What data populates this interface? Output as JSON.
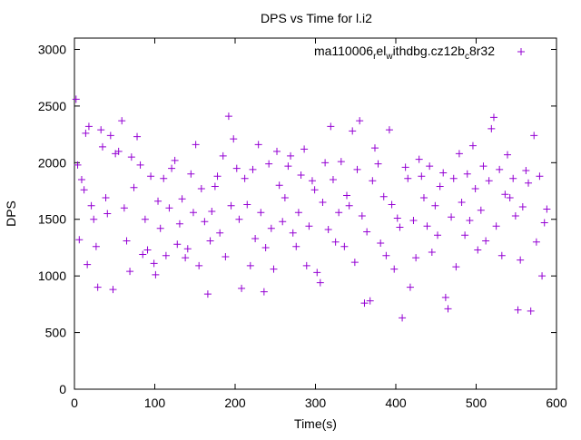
{
  "chart_data": {
    "type": "scatter",
    "title": "DPS vs Time for l.i2",
    "xlabel": "Time(s)",
    "ylabel": "DPS",
    "xlim": [
      0,
      600
    ],
    "ylim": [
      0,
      3100
    ],
    "xticks": [
      0,
      100,
      200,
      300,
      400,
      500,
      600
    ],
    "yticks": [
      0,
      500,
      1000,
      1500,
      2000,
      2500,
      3000
    ],
    "grid": false,
    "legend_position": "top-right",
    "series": [
      {
        "name": "ma110006_rel_withdbg.cz12b_c8r32",
        "name_parts": {
          "base1": "ma110006",
          "sub1": "r",
          "base2": "el",
          "sub2": "w",
          "base3": "ithdbg.cz12b",
          "sub3": "c",
          "base4": "8r32"
        },
        "color": "#9400d3",
        "marker": "plus",
        "points": [
          [
            2,
            2560
          ],
          [
            4,
            1980
          ],
          [
            6,
            1320
          ],
          [
            9,
            1850
          ],
          [
            12,
            1760
          ],
          [
            14,
            2260
          ],
          [
            16,
            1100
          ],
          [
            18,
            2320
          ],
          [
            21,
            1620
          ],
          [
            24,
            1500
          ],
          [
            27,
            1260
          ],
          [
            29,
            900
          ],
          [
            33,
            2290
          ],
          [
            35,
            2140
          ],
          [
            39,
            1690
          ],
          [
            41,
            1550
          ],
          [
            45,
            2240
          ],
          [
            48,
            880
          ],
          [
            51,
            2080
          ],
          [
            55,
            2100
          ],
          [
            59,
            2370
          ],
          [
            62,
            1600
          ],
          [
            65,
            1310
          ],
          [
            69,
            1040
          ],
          [
            71,
            2050
          ],
          [
            74,
            1780
          ],
          [
            78,
            2230
          ],
          [
            82,
            1980
          ],
          [
            85,
            1190
          ],
          [
            88,
            1500
          ],
          [
            91,
            1230
          ],
          [
            95,
            1880
          ],
          [
            99,
            1110
          ],
          [
            101,
            1010
          ],
          [
            104,
            1660
          ],
          [
            107,
            1420
          ],
          [
            111,
            1860
          ],
          [
            114,
            1180
          ],
          [
            118,
            1600
          ],
          [
            121,
            1950
          ],
          [
            125,
            2020
          ],
          [
            128,
            1280
          ],
          [
            131,
            1460
          ],
          [
            134,
            1680
          ],
          [
            138,
            1160
          ],
          [
            141,
            1240
          ],
          [
            145,
            1900
          ],
          [
            148,
            1560
          ],
          [
            151,
            2160
          ],
          [
            155,
            1090
          ],
          [
            158,
            1770
          ],
          [
            162,
            1480
          ],
          [
            166,
            840
          ],
          [
            169,
            1310
          ],
          [
            171,
            1570
          ],
          [
            175,
            1790
          ],
          [
            178,
            1880
          ],
          [
            181,
            1380
          ],
          [
            185,
            2060
          ],
          [
            188,
            1170
          ],
          [
            192,
            2410
          ],
          [
            195,
            1620
          ],
          [
            198,
            2210
          ],
          [
            202,
            1950
          ],
          [
            205,
            1500
          ],
          [
            208,
            890
          ],
          [
            212,
            1860
          ],
          [
            215,
            1630
          ],
          [
            219,
            1090
          ],
          [
            222,
            1940
          ],
          [
            225,
            1330
          ],
          [
            229,
            2160
          ],
          [
            232,
            1560
          ],
          [
            236,
            860
          ],
          [
            238,
            1250
          ],
          [
            242,
            1990
          ],
          [
            245,
            1420
          ],
          [
            248,
            1060
          ],
          [
            252,
            2100
          ],
          [
            255,
            1800
          ],
          [
            259,
            1480
          ],
          [
            262,
            1690
          ],
          [
            266,
            1970
          ],
          [
            269,
            2060
          ],
          [
            272,
            1380
          ],
          [
            276,
            1260
          ],
          [
            279,
            1560
          ],
          [
            282,
            1890
          ],
          [
            286,
            2120
          ],
          [
            289,
            1090
          ],
          [
            292,
            1440
          ],
          [
            296,
            1840
          ],
          [
            299,
            1760
          ],
          [
            302,
            1030
          ],
          [
            306,
            940
          ],
          [
            309,
            1650
          ],
          [
            312,
            2000
          ],
          [
            316,
            1410
          ],
          [
            319,
            2320
          ],
          [
            322,
            1850
          ],
          [
            325,
            1300
          ],
          [
            329,
            1560
          ],
          [
            332,
            2010
          ],
          [
            336,
            1260
          ],
          [
            339,
            1710
          ],
          [
            342,
            1620
          ],
          [
            346,
            2280
          ],
          [
            349,
            1120
          ],
          [
            352,
            1940
          ],
          [
            355,
            2370
          ],
          [
            358,
            1530
          ],
          [
            361,
            760
          ],
          [
            364,
            1390
          ],
          [
            368,
            780
          ],
          [
            371,
            1840
          ],
          [
            374,
            2130
          ],
          [
            378,
            1990
          ],
          [
            381,
            1290
          ],
          [
            385,
            1700
          ],
          [
            388,
            1180
          ],
          [
            392,
            2290
          ],
          [
            395,
            1630
          ],
          [
            398,
            1060
          ],
          [
            402,
            1510
          ],
          [
            405,
            1430
          ],
          [
            408,
            630
          ],
          [
            412,
            1960
          ],
          [
            415,
            1860
          ],
          [
            418,
            900
          ],
          [
            422,
            1490
          ],
          [
            425,
            1160
          ],
          [
            429,
            2030
          ],
          [
            432,
            1880
          ],
          [
            435,
            1690
          ],
          [
            439,
            1440
          ],
          [
            442,
            1970
          ],
          [
            445,
            1210
          ],
          [
            449,
            1620
          ],
          [
            452,
            1360
          ],
          [
            455,
            1790
          ],
          [
            459,
            1910
          ],
          [
            462,
            810
          ],
          [
            465,
            710
          ],
          [
            469,
            1520
          ],
          [
            472,
            1860
          ],
          [
            475,
            1080
          ],
          [
            479,
            2080
          ],
          [
            482,
            1650
          ],
          [
            486,
            1360
          ],
          [
            489,
            1900
          ],
          [
            492,
            1490
          ],
          [
            496,
            2150
          ],
          [
            499,
            1770
          ],
          [
            502,
            1230
          ],
          [
            506,
            1580
          ],
          [
            509,
            1970
          ],
          [
            512,
            1310
          ],
          [
            516,
            1840
          ],
          [
            519,
            2300
          ],
          [
            522,
            2400
          ],
          [
            525,
            1440
          ],
          [
            529,
            1940
          ],
          [
            532,
            1180
          ],
          [
            536,
            1720
          ],
          [
            539,
            2070
          ],
          [
            542,
            1690
          ],
          [
            546,
            1860
          ],
          [
            549,
            1530
          ],
          [
            552,
            700
          ],
          [
            555,
            1140
          ],
          [
            558,
            1610
          ],
          [
            562,
            1930
          ],
          [
            565,
            1820
          ],
          [
            568,
            690
          ],
          [
            572,
            2240
          ],
          [
            575,
            1300
          ],
          [
            579,
            1880
          ],
          [
            582,
            1000
          ],
          [
            585,
            1470
          ],
          [
            588,
            1590
          ]
        ]
      }
    ]
  }
}
